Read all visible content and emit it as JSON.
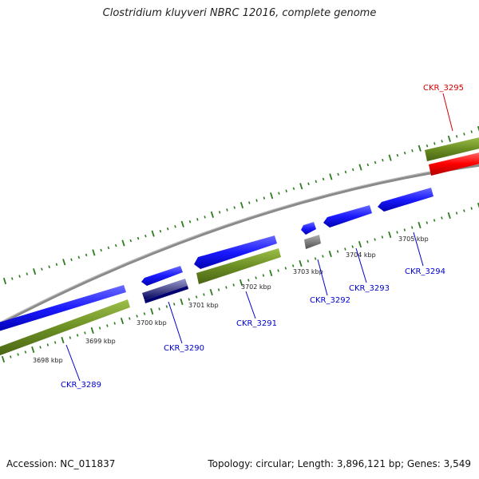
{
  "title": "Clostridium kluyveri NBRC 12016, complete genome",
  "footer": {
    "accession_label": "Accession: NC_011837",
    "topology_label": "Topology: circular; Length: 3,896,121 bp; Genes: 3,549"
  },
  "colors": {
    "background": "#ffffff",
    "backbone": "#8c8c8c",
    "tick": "#2e7d1f",
    "gene_forward": "#1a1aff",
    "gene_selected": "#ff0000",
    "gene_pseudo": "#808080",
    "gene_dark": "#1a1a80",
    "cds_green": "#6b8e23",
    "label_blue": "#0000cc",
    "label_red": "#d40000"
  },
  "ruler": {
    "unit": "kbp",
    "labels": [
      "3698 kbp",
      "3699 kbp",
      "3700 kbp",
      "3701 kbp",
      "3702 kbp",
      "3703 kbp",
      "3704 kbp",
      "3705 kbp"
    ]
  },
  "genes": [
    {
      "id": "CKR_3289",
      "label": "CKR_3289",
      "color": "blue",
      "has_cds": true
    },
    {
      "id": "CKR_3290",
      "label": "CKR_3290",
      "color": "blue",
      "has_cds": true
    },
    {
      "id": "CKR_3291",
      "label": "CKR_3291",
      "color": "blue",
      "has_cds": true
    },
    {
      "id": "CKR_3292",
      "label": "CKR_3292",
      "color": "blue",
      "has_cds": false
    },
    {
      "id": "CKR_3293",
      "label": "CKR_3293",
      "color": "blue",
      "has_cds": false
    },
    {
      "id": "CKR_3294",
      "label": "CKR_3294",
      "color": "blue",
      "has_cds": false
    },
    {
      "id": "CKR_3295",
      "label": "CKR_3295",
      "color": "red",
      "has_cds": true
    }
  ]
}
